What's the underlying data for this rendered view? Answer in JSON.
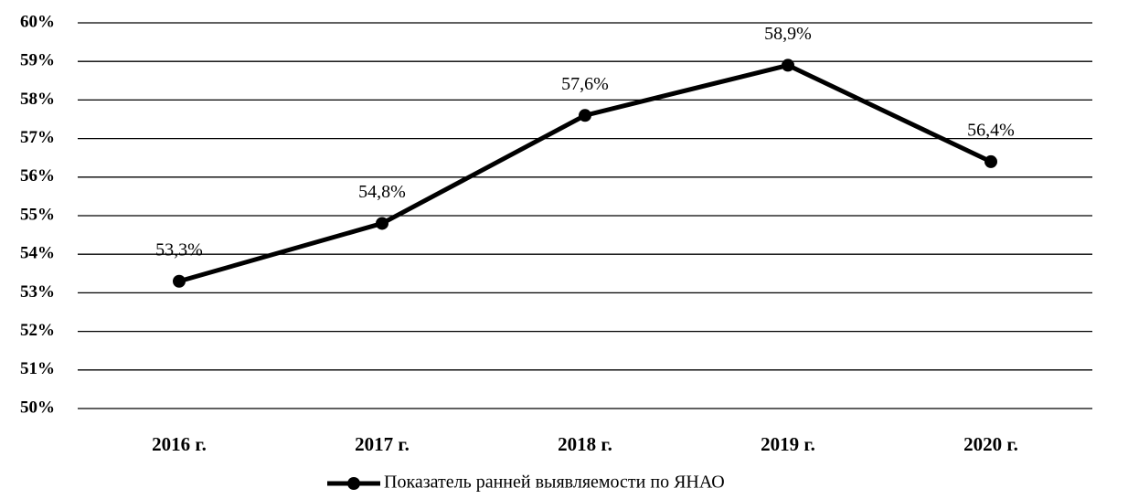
{
  "chart_data": {
    "type": "line",
    "categories": [
      "2016 г.",
      "2017 г.",
      "2018 г.",
      "2019 г.",
      "2020 г."
    ],
    "series": [
      {
        "name": "Показатель ранней выявляемости по ЯНАО",
        "color": "#000000",
        "values": [
          53.3,
          54.8,
          57.6,
          58.9,
          56.4
        ],
        "value_labels": [
          "53,3%",
          "54,8%",
          "57,6%",
          "58,9%",
          "56,4%"
        ]
      }
    ],
    "ylim": [
      50,
      60
    ],
    "yticks": [
      {
        "value": 50,
        "label": "50%"
      },
      {
        "value": 51,
        "label": "51%"
      },
      {
        "value": 52,
        "label": "52%"
      },
      {
        "value": 53,
        "label": "53%"
      },
      {
        "value": 54,
        "label": "54%"
      },
      {
        "value": 55,
        "label": "55%"
      },
      {
        "value": 56,
        "label": "56%"
      },
      {
        "value": 57,
        "label": "57%"
      },
      {
        "value": 58,
        "label": "58%"
      },
      {
        "value": 59,
        "label": "59%"
      },
      {
        "value": 60,
        "label": "60%"
      }
    ],
    "grid": true,
    "legend": "bottom"
  }
}
